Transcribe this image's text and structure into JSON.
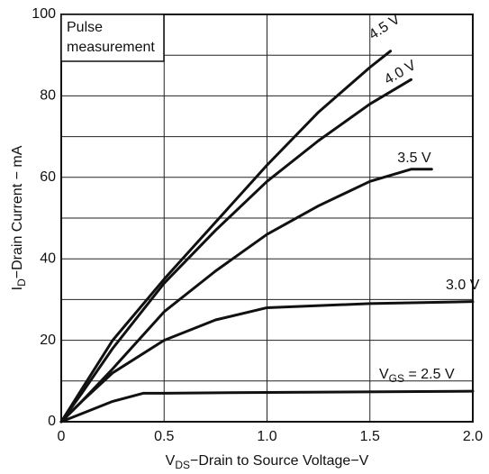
{
  "chart_data": {
    "type": "line",
    "annotation": [
      "Pulse",
      "measurement"
    ],
    "x_label": {
      "symbol": "V",
      "sub": "DS",
      "text": "−Drain to Source Voltage−V"
    },
    "y_label": {
      "symbol": "I",
      "sub": "D",
      "text": "−Drain Current − mA"
    },
    "xlim": [
      0,
      2.0
    ],
    "ylim": [
      0,
      100
    ],
    "xticks": [
      0,
      0.5,
      {
        "value": 1.0,
        "label": "1.0"
      },
      1.5,
      {
        "value": 2.0,
        "label": "2.0"
      }
    ],
    "yticks": [
      0,
      20,
      40,
      60,
      80,
      100
    ],
    "yminor": [
      10,
      30,
      50,
      70,
      90
    ],
    "grid": true,
    "color": "#111111",
    "series": [
      {
        "name": "4.5 V",
        "x": [
          0,
          0.1,
          0.25,
          0.5,
          0.75,
          1.0,
          1.25,
          1.5,
          1.6
        ],
        "values": [
          0,
          8,
          20,
          35,
          49,
          63,
          76,
          87,
          91
        ]
      },
      {
        "name": "4.0 V",
        "x": [
          0,
          0.1,
          0.25,
          0.5,
          0.75,
          1.0,
          1.25,
          1.5,
          1.7
        ],
        "values": [
          0,
          7,
          18,
          34,
          47,
          59,
          69,
          78,
          84
        ]
      },
      {
        "name": "3.5 V",
        "x": [
          0,
          0.1,
          0.25,
          0.5,
          0.75,
          1.0,
          1.25,
          1.5,
          1.7,
          1.8
        ],
        "values": [
          0,
          5,
          13,
          27,
          37,
          46,
          53,
          59,
          62,
          62
        ]
      },
      {
        "name": "3.0 V",
        "x": [
          0,
          0.1,
          0.25,
          0.5,
          0.75,
          1.0,
          1.5,
          2.0
        ],
        "values": [
          0,
          5,
          12,
          20,
          25,
          28,
          29,
          29.5
        ]
      },
      {
        "name": {
          "symbol": "V",
          "sub": "GS",
          "text": " = 2.5 V"
        },
        "x": [
          0,
          0.1,
          0.25,
          0.4,
          0.5,
          1.0,
          2.0
        ],
        "values": [
          0,
          2,
          5,
          7,
          7,
          7.2,
          7.5
        ]
      }
    ]
  }
}
